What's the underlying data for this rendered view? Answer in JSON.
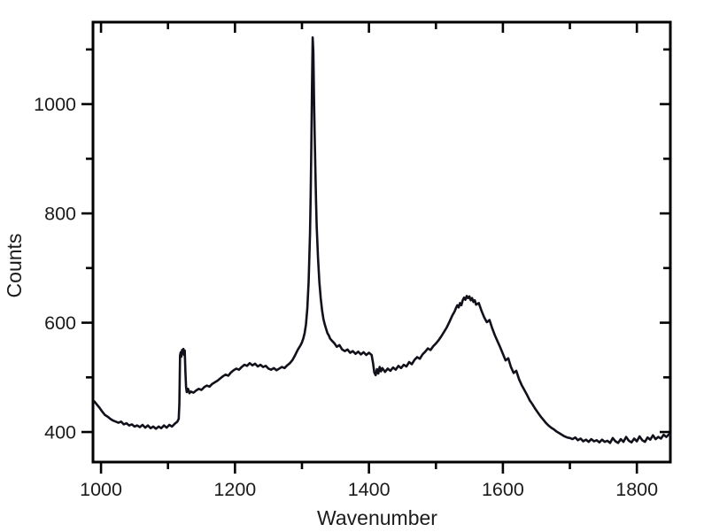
{
  "chart_data": {
    "type": "line",
    "title": "",
    "xlabel": "Wavenumber",
    "ylabel": "Counts",
    "xlim": [
      988,
      1850
    ],
    "ylim": [
      345,
      1150
    ],
    "x_major_ticks": [
      1000,
      1200,
      1400,
      1600,
      1800
    ],
    "x_minor_ticks": [
      1100,
      1300,
      1500,
      1700
    ],
    "y_major_ticks": [
      400,
      600,
      800,
      1000
    ],
    "y_minor_ticks": [
      500,
      700,
      900,
      1100
    ],
    "grid": false,
    "legend": "none",
    "frame_color": "#000000",
    "line_color": "#12101a",
    "background_color": "#ffffff",
    "points": [
      [
        990,
        456
      ],
      [
        994,
        450
      ],
      [
        998,
        444
      ],
      [
        1002,
        437
      ],
      [
        1006,
        431
      ],
      [
        1010,
        428
      ],
      [
        1014,
        424
      ],
      [
        1018,
        421
      ],
      [
        1022,
        419
      ],
      [
        1026,
        417
      ],
      [
        1030,
        419
      ],
      [
        1034,
        414
      ],
      [
        1038,
        416
      ],
      [
        1042,
        412
      ],
      [
        1046,
        414
      ],
      [
        1050,
        410
      ],
      [
        1054,
        412
      ],
      [
        1058,
        409
      ],
      [
        1062,
        413
      ],
      [
        1066,
        408
      ],
      [
        1070,
        412
      ],
      [
        1074,
        407
      ],
      [
        1078,
        410
      ],
      [
        1082,
        406
      ],
      [
        1086,
        410
      ],
      [
        1090,
        407
      ],
      [
        1094,
        412
      ],
      [
        1098,
        408
      ],
      [
        1102,
        413
      ],
      [
        1106,
        410
      ],
      [
        1110,
        415
      ],
      [
        1114,
        419
      ],
      [
        1116,
        424
      ],
      [
        1117,
        452
      ],
      [
        1118,
        540
      ],
      [
        1119,
        546
      ],
      [
        1120,
        538
      ],
      [
        1121,
        550
      ],
      [
        1122,
        544
      ],
      [
        1123,
        552
      ],
      [
        1124,
        541
      ],
      [
        1125,
        549
      ],
      [
        1126,
        510
      ],
      [
        1127,
        482
      ],
      [
        1128,
        473
      ],
      [
        1130,
        479
      ],
      [
        1132,
        471
      ],
      [
        1134,
        474
      ],
      [
        1138,
        472
      ],
      [
        1142,
        476
      ],
      [
        1146,
        479
      ],
      [
        1150,
        477
      ],
      [
        1154,
        482
      ],
      [
        1158,
        485
      ],
      [
        1162,
        483
      ],
      [
        1166,
        488
      ],
      [
        1170,
        491
      ],
      [
        1174,
        494
      ],
      [
        1178,
        498
      ],
      [
        1182,
        502
      ],
      [
        1186,
        505
      ],
      [
        1190,
        503
      ],
      [
        1194,
        509
      ],
      [
        1198,
        513
      ],
      [
        1202,
        516
      ],
      [
        1206,
        514
      ],
      [
        1210,
        519
      ],
      [
        1214,
        523
      ],
      [
        1218,
        521
      ],
      [
        1222,
        526
      ],
      [
        1226,
        522
      ],
      [
        1230,
        525
      ],
      [
        1234,
        520
      ],
      [
        1238,
        523
      ],
      [
        1242,
        519
      ],
      [
        1246,
        521
      ],
      [
        1250,
        516
      ],
      [
        1254,
        514
      ],
      [
        1258,
        517
      ],
      [
        1262,
        513
      ],
      [
        1266,
        516
      ],
      [
        1270,
        519
      ],
      [
        1274,
        517
      ],
      [
        1278,
        522
      ],
      [
        1282,
        526
      ],
      [
        1286,
        532
      ],
      [
        1290,
        541
      ],
      [
        1294,
        551
      ],
      [
        1298,
        559
      ],
      [
        1300,
        564
      ],
      [
        1302,
        571
      ],
      [
        1304,
        581
      ],
      [
        1306,
        597
      ],
      [
        1308,
        626
      ],
      [
        1310,
        676
      ],
      [
        1312,
        762
      ],
      [
        1313,
        832
      ],
      [
        1314,
        922
      ],
      [
        1315,
        1032
      ],
      [
        1316,
        1122
      ],
      [
        1317,
        1096
      ],
      [
        1318,
        1012
      ],
      [
        1319,
        942
      ],
      [
        1320,
        882
      ],
      [
        1321,
        824
      ],
      [
        1322,
        776
      ],
      [
        1324,
        718
      ],
      [
        1326,
        674
      ],
      [
        1328,
        645
      ],
      [
        1330,
        623
      ],
      [
        1332,
        607
      ],
      [
        1334,
        597
      ],
      [
        1336,
        589
      ],
      [
        1338,
        581
      ],
      [
        1340,
        577
      ],
      [
        1342,
        571
      ],
      [
        1344,
        568
      ],
      [
        1348,
        563
      ],
      [
        1352,
        556
      ],
      [
        1356,
        559
      ],
      [
        1360,
        551
      ],
      [
        1364,
        548
      ],
      [
        1368,
        551
      ],
      [
        1372,
        545
      ],
      [
        1376,
        548
      ],
      [
        1380,
        543
      ],
      [
        1384,
        547
      ],
      [
        1388,
        542
      ],
      [
        1392,
        546
      ],
      [
        1396,
        541
      ],
      [
        1400,
        545
      ],
      [
        1404,
        541
      ],
      [
        1406,
        527
      ],
      [
        1408,
        509
      ],
      [
        1410,
        504
      ],
      [
        1412,
        515
      ],
      [
        1414,
        507
      ],
      [
        1416,
        519
      ],
      [
        1418,
        511
      ],
      [
        1420,
        517
      ],
      [
        1424,
        510
      ],
      [
        1428,
        516
      ],
      [
        1432,
        512
      ],
      [
        1436,
        518
      ],
      [
        1440,
        514
      ],
      [
        1444,
        521
      ],
      [
        1448,
        517
      ],
      [
        1452,
        523
      ],
      [
        1456,
        520
      ],
      [
        1460,
        528
      ],
      [
        1464,
        524
      ],
      [
        1468,
        532
      ],
      [
        1472,
        537
      ],
      [
        1476,
        534
      ],
      [
        1480,
        542
      ],
      [
        1484,
        547
      ],
      [
        1488,
        553
      ],
      [
        1492,
        550
      ],
      [
        1496,
        557
      ],
      [
        1500,
        562
      ],
      [
        1504,
        568
      ],
      [
        1508,
        575
      ],
      [
        1512,
        583
      ],
      [
        1516,
        591
      ],
      [
        1520,
        601
      ],
      [
        1524,
        612
      ],
      [
        1528,
        621
      ],
      [
        1530,
        627
      ],
      [
        1532,
        632
      ],
      [
        1534,
        628
      ],
      [
        1536,
        636
      ],
      [
        1538,
        632
      ],
      [
        1540,
        641
      ],
      [
        1542,
        646
      ],
      [
        1544,
        642
      ],
      [
        1546,
        649
      ],
      [
        1548,
        645
      ],
      [
        1550,
        648
      ],
      [
        1552,
        641
      ],
      [
        1554,
        645
      ],
      [
        1556,
        638
      ],
      [
        1558,
        641
      ],
      [
        1560,
        633
      ],
      [
        1564,
        636
      ],
      [
        1568,
        622
      ],
      [
        1572,
        610
      ],
      [
        1576,
        601
      ],
      [
        1580,
        605
      ],
      [
        1584,
        590
      ],
      [
        1588,
        577
      ],
      [
        1592,
        566
      ],
      [
        1596,
        555
      ],
      [
        1600,
        543
      ],
      [
        1604,
        531
      ],
      [
        1608,
        535
      ],
      [
        1612,
        519
      ],
      [
        1616,
        508
      ],
      [
        1620,
        512
      ],
      [
        1624,
        497
      ],
      [
        1628,
        486
      ],
      [
        1632,
        477
      ],
      [
        1636,
        468
      ],
      [
        1640,
        458
      ],
      [
        1644,
        451
      ],
      [
        1648,
        443
      ],
      [
        1652,
        436
      ],
      [
        1656,
        429
      ],
      [
        1660,
        423
      ],
      [
        1664,
        417
      ],
      [
        1668,
        412
      ],
      [
        1672,
        408
      ],
      [
        1676,
        405
      ],
      [
        1680,
        401
      ],
      [
        1684,
        398
      ],
      [
        1688,
        395
      ],
      [
        1692,
        392
      ],
      [
        1696,
        390
      ],
      [
        1700,
        389
      ],
      [
        1704,
        387
      ],
      [
        1708,
        390
      ],
      [
        1712,
        385
      ],
      [
        1716,
        388
      ],
      [
        1720,
        383
      ],
      [
        1724,
        386
      ],
      [
        1728,
        382
      ],
      [
        1732,
        387
      ],
      [
        1736,
        383
      ],
      [
        1740,
        385
      ],
      [
        1744,
        381
      ],
      [
        1748,
        386
      ],
      [
        1752,
        382
      ],
      [
        1756,
        384
      ],
      [
        1760,
        380
      ],
      [
        1764,
        389
      ],
      [
        1768,
        383
      ],
      [
        1772,
        380
      ],
      [
        1776,
        387
      ],
      [
        1780,
        382
      ],
      [
        1784,
        391
      ],
      [
        1788,
        384
      ],
      [
        1792,
        381
      ],
      [
        1796,
        388
      ],
      [
        1800,
        383
      ],
      [
        1804,
        392
      ],
      [
        1808,
        385
      ],
      [
        1812,
        382
      ],
      [
        1816,
        390
      ],
      [
        1820,
        386
      ],
      [
        1824,
        394
      ],
      [
        1828,
        387
      ],
      [
        1832,
        391
      ],
      [
        1836,
        388
      ],
      [
        1840,
        395
      ],
      [
        1844,
        391
      ],
      [
        1848,
        396
      ],
      [
        1850,
        394
      ]
    ]
  }
}
